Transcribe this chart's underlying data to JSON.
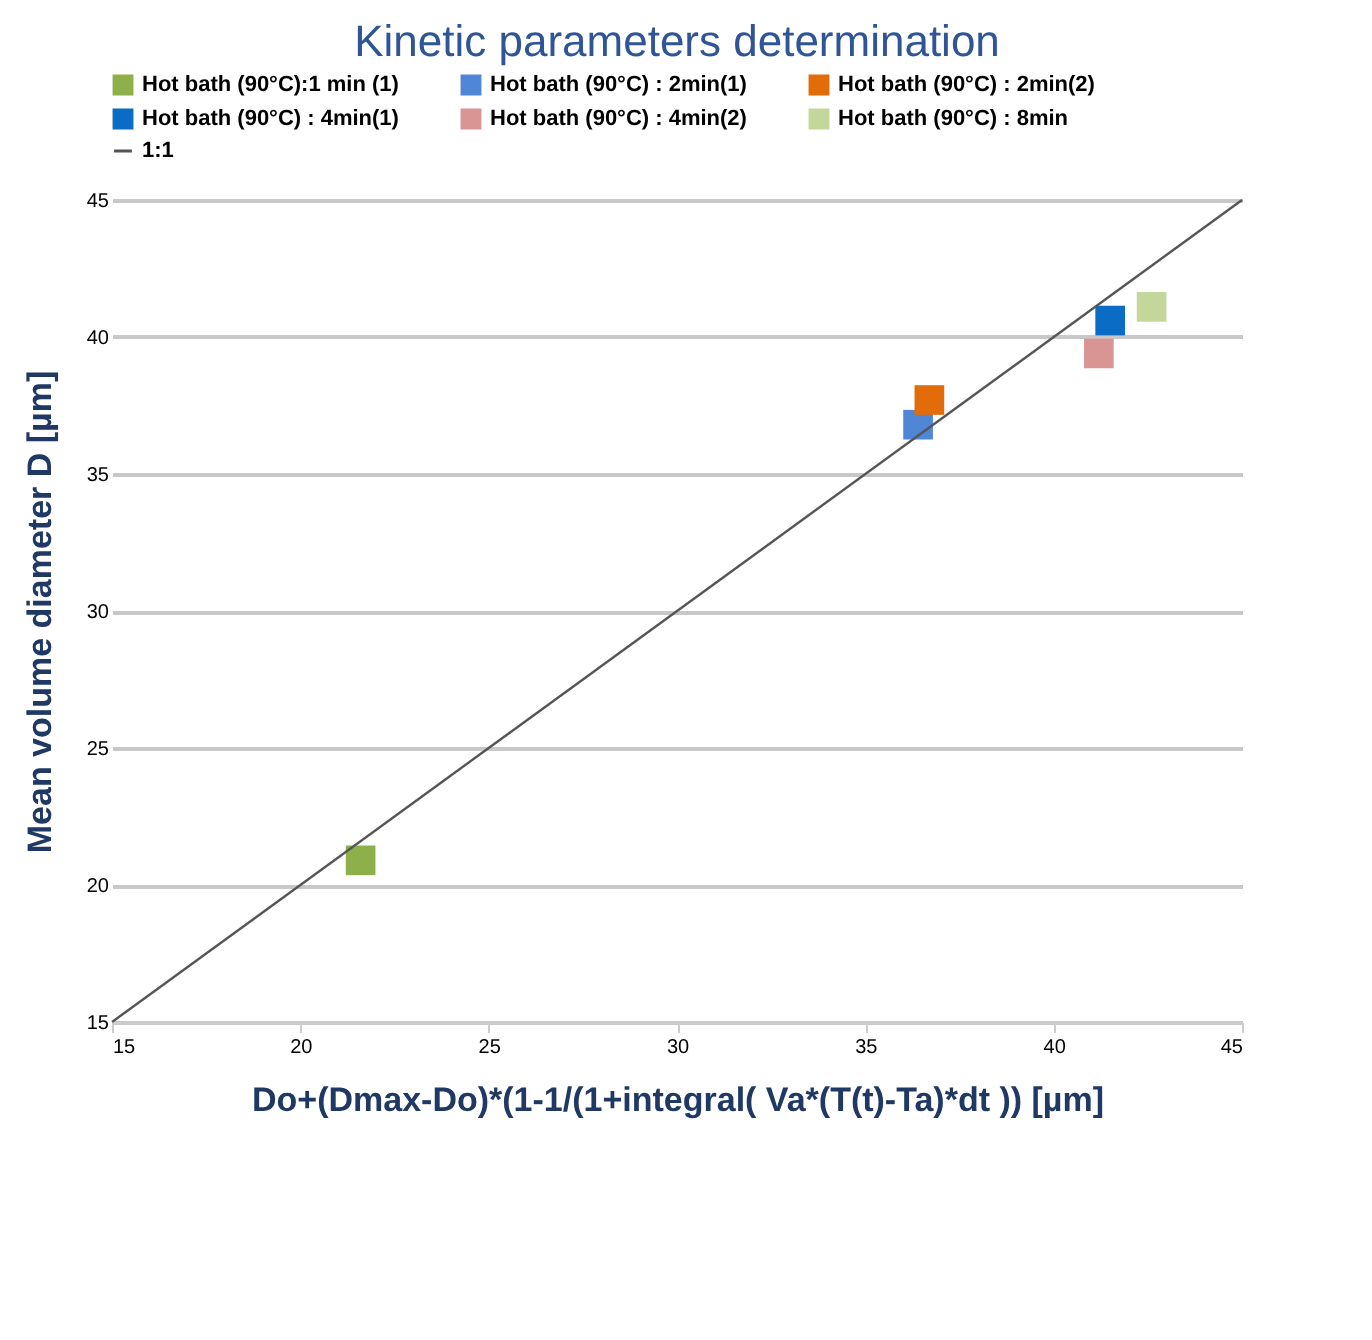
{
  "chart_data": {
    "type": "scatter",
    "title": "Kinetic parameters determination",
    "xlabel": "Do+(Dmax-Do)*(1-1/(1+integral( Va*(T(t)-Ta)*dt )) [µm]",
    "ylabel": "Mean volume diameter D [µm]",
    "xlim": [
      15,
      45
    ],
    "xticks": [
      15,
      20,
      25,
      30,
      35,
      40,
      45
    ],
    "ylim": [
      15,
      45
    ],
    "yticks": [
      15,
      20,
      25,
      30,
      35,
      40,
      45
    ],
    "grid": "y",
    "legend": "top",
    "marker": "square",
    "series": [
      {
        "name": "Hot bath (90°C):1 min (1)",
        "color": "#8db04a",
        "x": [
          21.6
        ],
        "values": [
          20.9
        ]
      },
      {
        "name": "Hot bath (90°C) : 2min(1)",
        "color": "#4f86d6",
        "x": [
          36.4
        ],
        "values": [
          36.8
        ]
      },
      {
        "name": "Hot bath (90°C) : 2min(2)",
        "color": "#e36c0a",
        "x": [
          36.7
        ],
        "values": [
          37.7
        ]
      },
      {
        "name": "Hot bath (90°C) : 4min(1)",
        "color": "#0b6cc6",
        "x": [
          41.5
        ],
        "values": [
          40.6
        ]
      },
      {
        "name": "Hot bath (90°C) : 4min(2)",
        "color": "#d99594",
        "x": [
          41.2
        ],
        "values": [
          39.4
        ]
      },
      {
        "name": "Hot bath (90°C) : 8min",
        "color": "#c4d79b",
        "x": [
          42.6
        ],
        "values": [
          41.1
        ]
      },
      {
        "name": "1:1",
        "type": "line",
        "marker": "none",
        "line_style": "solid",
        "color": "#555555",
        "x": [
          15,
          45
        ],
        "values": [
          15,
          45
        ]
      }
    ]
  }
}
